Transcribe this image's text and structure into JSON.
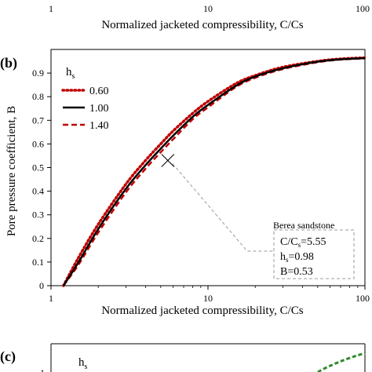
{
  "top_fragment": {
    "tick_labels": [
      "1",
      "10",
      "100"
    ],
    "xlabel": "Normalized jacketed compressibility, C/Cs"
  },
  "panel_c_fragment": {
    "label": "(c)",
    "legend_title_main": "h",
    "legend_title_sub": "s",
    "tick_label": "1",
    "curve_color": "#2e8b2e"
  },
  "chart_data": {
    "type": "line",
    "panel_label": "(b)",
    "xscale": "log",
    "xlim": [
      1,
      100
    ],
    "ylim": [
      0,
      1
    ],
    "xticks": [
      "1",
      "10",
      "100"
    ],
    "yticks": [
      "0",
      "0.1",
      "0.2",
      "0.3",
      "0.4",
      "0.5",
      "0.6",
      "0.7",
      "0.8",
      "0.9"
    ],
    "xlabel": "Normalized jacketed compressibility, C/Cs",
    "ylabel": "Pore pressure coefficient, B",
    "legend": {
      "title_main": "h",
      "title_sub": "s",
      "placement": "top-left"
    },
    "x": [
      1.2,
      1.5,
      2,
      3,
      4,
      5,
      6,
      8,
      10,
      15,
      20,
      30,
      50,
      70,
      100
    ],
    "series": [
      {
        "name": "0.60",
        "color": "#c00000",
        "style": "dotted",
        "values": [
          0.0,
          0.12,
          0.26,
          0.43,
          0.53,
          0.6,
          0.655,
          0.73,
          0.78,
          0.855,
          0.89,
          0.925,
          0.95,
          0.96,
          0.965
        ]
      },
      {
        "name": "1.00",
        "color": "#000000",
        "style": "solid",
        "values": [
          0.0,
          0.1,
          0.24,
          0.41,
          0.51,
          0.58,
          0.635,
          0.715,
          0.765,
          0.845,
          0.885,
          0.92,
          0.948,
          0.958,
          0.963
        ]
      },
      {
        "name": "1.40",
        "color": "#c00000",
        "style": "dashed",
        "values": [
          0.0,
          0.09,
          0.225,
          0.395,
          0.495,
          0.565,
          0.62,
          0.705,
          0.755,
          0.84,
          0.88,
          0.917,
          0.946,
          0.957,
          0.962
        ]
      }
    ],
    "annotation": {
      "title": "Berea sandstone",
      "point_x": 5.55,
      "point_y": 0.53,
      "line1_main": "C/C",
      "line1_sub": "s",
      "line1_value": "=5.55",
      "line2_main": "h",
      "line2_sub": "s",
      "line2_value": "=0.98",
      "line3": "B=0.53"
    }
  }
}
